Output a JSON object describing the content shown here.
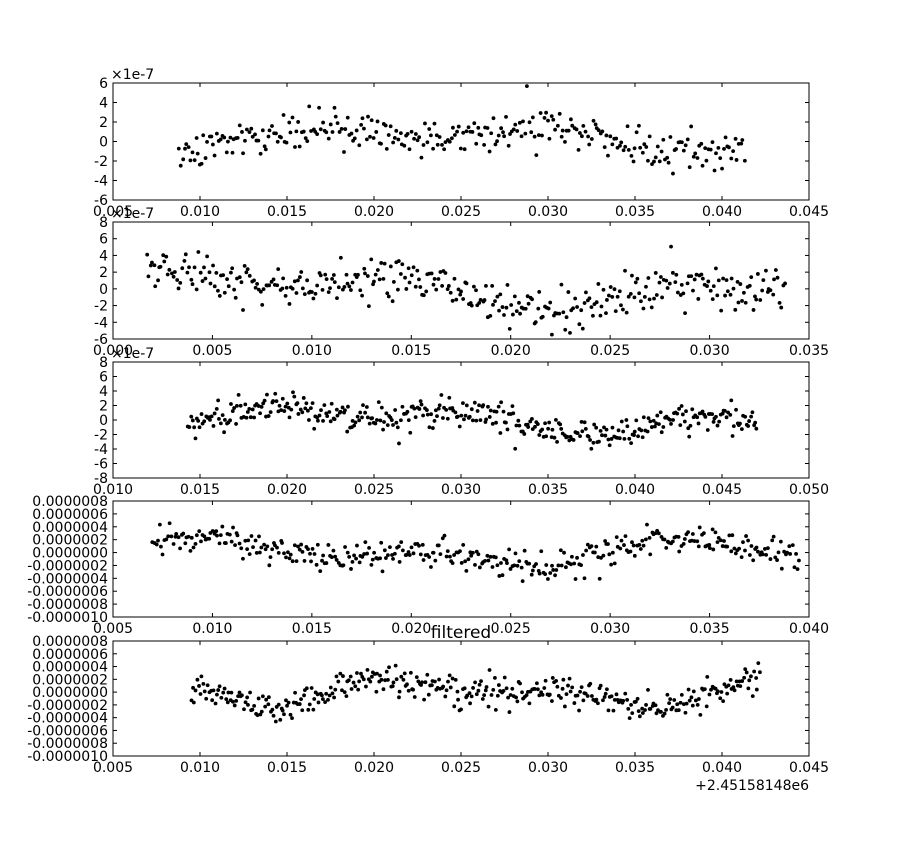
{
  "chart_data": [
    {
      "type": "scatter",
      "title": "",
      "xlabel": "",
      "ylabel": "",
      "offset_label": "×1e-7",
      "xlim": [
        0.005,
        0.045
      ],
      "ylim": [
        -6,
        6
      ],
      "xticks": [
        "0.005",
        "0.010",
        "0.015",
        "0.020",
        "0.025",
        "0.030",
        "0.035",
        "0.040",
        "0.045"
      ],
      "yticks": [
        "-6",
        "-4",
        "-2",
        "0",
        "2",
        "4",
        "6"
      ],
      "x_range": [
        0.0088,
        0.0413
      ],
      "amplitude": 2.0,
      "grid": false,
      "marker_color": "#000000",
      "points": 300
    },
    {
      "type": "scatter",
      "title": "",
      "xlabel": "",
      "ylabel": "",
      "offset_label": "×1e-7",
      "xlim": [
        0.0,
        0.035
      ],
      "ylim": [
        -6,
        8
      ],
      "xticks": [
        "0.000",
        "0.005",
        "0.010",
        "0.015",
        "0.020",
        "0.025",
        "0.030",
        "0.035"
      ],
      "yticks": [
        "-6",
        "-4",
        "-2",
        "0",
        "2",
        "4",
        "6",
        "8"
      ],
      "x_range": [
        0.0017,
        0.0338
      ],
      "amplitude": 2.8,
      "grid": false,
      "marker_color": "#000000",
      "points": 360
    },
    {
      "type": "scatter",
      "title": "",
      "xlabel": "",
      "ylabel": "",
      "offset_label": "×1e-7",
      "xlim": [
        0.01,
        0.05
      ],
      "ylim": [
        -8,
        8
      ],
      "xticks": [
        "0.010",
        "0.015",
        "0.020",
        "0.025",
        "0.030",
        "0.035",
        "0.040",
        "0.045",
        "0.050"
      ],
      "yticks": [
        "-8",
        "-6",
        "-4",
        "-2",
        "0",
        "2",
        "4",
        "6",
        "8"
      ],
      "x_range": [
        0.0143,
        0.047
      ],
      "amplitude": 2.2,
      "grid": false,
      "marker_color": "#000000",
      "points": 380
    },
    {
      "type": "scatter",
      "title": "",
      "xlabel": "",
      "ylabel": "",
      "offset_label": "",
      "xlim": [
        0.005,
        0.04
      ],
      "ylim": [
        -10,
        8
      ],
      "xticks": [
        "0.005",
        "0.010",
        "0.015",
        "0.020",
        "0.025",
        "0.030",
        "0.035",
        "0.040"
      ],
      "yticks": [
        "-0.0000010",
        "-0.0000008",
        "-0.0000006",
        "-0.0000004",
        "-0.0000002",
        "0.0000000",
        "0.0000002",
        "0.0000004",
        "0.0000006",
        "0.0000008"
      ],
      "x_range": [
        0.007,
        0.0395
      ],
      "amplitude": 2.4,
      "grid": false,
      "marker_color": "#000000",
      "points": 380
    },
    {
      "type": "scatter",
      "title": "filtered",
      "xlabel": "",
      "ylabel": "",
      "offset_label": "+2.45158148e6",
      "xlim": [
        0.005,
        0.045
      ],
      "ylim": [
        -10,
        8
      ],
      "xticks": [
        "0.005",
        "0.010",
        "0.015",
        "0.020",
        "0.025",
        "0.030",
        "0.035",
        "0.040",
        "0.045"
      ],
      "yticks": [
        "-0.0000010",
        "-0.0000008",
        "-0.0000006",
        "-0.0000004",
        "-0.0000002",
        "0.0000000",
        "0.0000002",
        "0.0000004",
        "0.0000006",
        "0.0000008"
      ],
      "x_range": [
        0.0095,
        0.0422
      ],
      "amplitude": 2.6,
      "grid": false,
      "marker_color": "#000000",
      "points": 380
    }
  ]
}
